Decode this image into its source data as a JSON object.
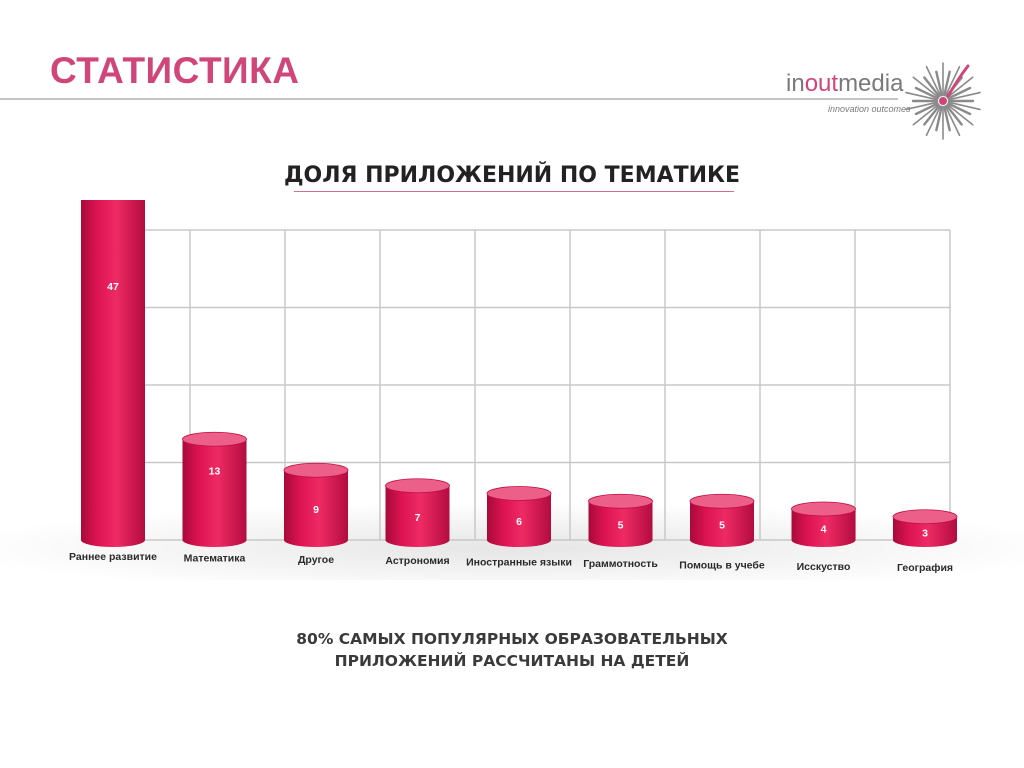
{
  "slide": {
    "title": "СТАТИСТИКА",
    "logo": {
      "name_prefix": "in",
      "name_accent": "out",
      "name_suffix": "media",
      "tagline": "innovation outcomes"
    },
    "footnote_line1": "80% САМЫХ ПОПУЛЯРНЫХ ОБРАЗОВАТЕЛЬНЫХ",
    "footnote_line2": "ПРИЛОЖЕНИЙ РАССЧИТАНЫ НА ДЕТЕЙ"
  },
  "colors": {
    "accent": "#d0457a",
    "bar": "#dc1352",
    "bar_top": "#ec5f88",
    "grid": "#c8c8c8"
  },
  "chart_data": {
    "type": "bar",
    "title": "ДОЛЯ ПРИЛОЖЕНИЙ ПО ТЕМАТИКЕ",
    "categories": [
      "Раннее развитие",
      "Математика",
      "Другое",
      "Астрономия",
      "Иностранные языки",
      "Граммотность",
      "Помощь в учебе",
      "Исскуство",
      "География"
    ],
    "values": [
      47,
      13,
      9,
      7,
      6,
      5,
      5,
      4,
      3
    ],
    "data_labels": [
      "47",
      "13",
      "9",
      "7",
      "6",
      "5",
      "5",
      "4",
      "3"
    ],
    "xlabel": "",
    "ylabel": "",
    "ylim": [
      0,
      40
    ],
    "grid": true,
    "legend": "none",
    "style": "3d-cylinder"
  }
}
